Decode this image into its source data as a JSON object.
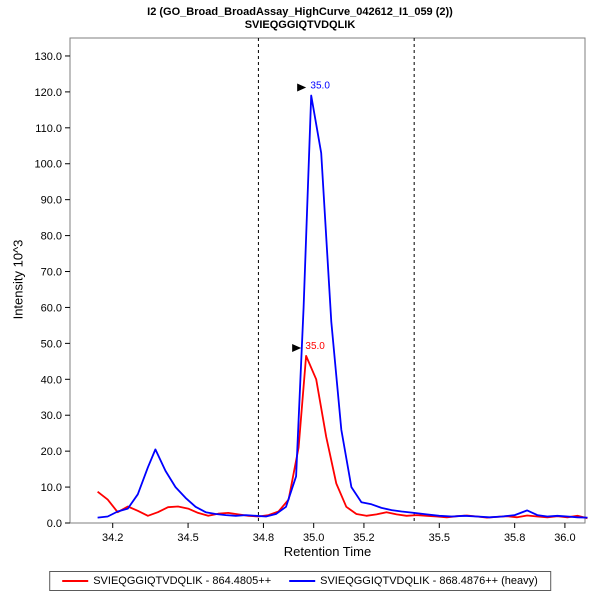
{
  "header": {
    "title_line1": "I2 (GO_Broad_BroadAssay_HighCurve_042612_I1_059 (2))",
    "title_line2": "SVIEQGGIQTVDQLIK"
  },
  "chart_data": {
    "type": "line",
    "title": "I2 (GO_Broad_BroadAssay_HighCurve_042612_I1_059 (2)) SVIEQGGIQTVDQLIK",
    "xlabel": "Retention Time",
    "ylabel": "Intensity 10^3",
    "xlim": [
      34.03,
      36.08
    ],
    "ylim": [
      0,
      135
    ],
    "xticks": [
      34.2,
      34.5,
      34.8,
      35.0,
      35.2,
      35.5,
      35.8,
      36.0
    ],
    "yticks": [
      0,
      10,
      20,
      30,
      40,
      50,
      60,
      70,
      80,
      90,
      100,
      110,
      120,
      130
    ],
    "grid": false,
    "legend_position": "bottom",
    "integration_boundaries": [
      34.78,
      35.4
    ],
    "series": [
      {
        "name": "SVIEQGGIQTVDQLIK - 864.4805++",
        "color": "#ff0000",
        "peak_annotation": {
          "x": 34.97,
          "y": 46.5,
          "label": "35.0"
        },
        "points": [
          [
            34.14,
            8.7
          ],
          [
            34.18,
            6.5
          ],
          [
            34.22,
            3.0
          ],
          [
            34.26,
            4.6
          ],
          [
            34.3,
            3.4
          ],
          [
            34.34,
            2.0
          ],
          [
            34.38,
            3.0
          ],
          [
            34.42,
            4.4
          ],
          [
            34.46,
            4.6
          ],
          [
            34.5,
            4.0
          ],
          [
            34.54,
            2.8
          ],
          [
            34.58,
            2.0
          ],
          [
            34.62,
            2.6
          ],
          [
            34.66,
            2.8
          ],
          [
            34.7,
            2.4
          ],
          [
            34.74,
            2.0
          ],
          [
            34.78,
            1.8
          ],
          [
            34.82,
            2.2
          ],
          [
            34.86,
            3.2
          ],
          [
            34.9,
            6.5
          ],
          [
            34.94,
            21.0
          ],
          [
            34.97,
            46.5
          ],
          [
            35.01,
            40.0
          ],
          [
            35.05,
            24.0
          ],
          [
            35.09,
            11.0
          ],
          [
            35.13,
            4.5
          ],
          [
            35.17,
            2.5
          ],
          [
            35.21,
            2.0
          ],
          [
            35.25,
            2.4
          ],
          [
            35.29,
            3.0
          ],
          [
            35.33,
            2.4
          ],
          [
            35.37,
            2.0
          ],
          [
            35.41,
            2.2
          ],
          [
            35.45,
            2.0
          ],
          [
            35.49,
            1.8
          ],
          [
            35.53,
            1.6
          ],
          [
            35.57,
            1.9
          ],
          [
            35.61,
            2.1
          ],
          [
            35.65,
            1.8
          ],
          [
            35.69,
            1.5
          ],
          [
            35.73,
            1.7
          ],
          [
            35.77,
            1.9
          ],
          [
            35.81,
            1.6
          ],
          [
            35.85,
            2.1
          ],
          [
            35.89,
            1.8
          ],
          [
            35.93,
            1.6
          ],
          [
            35.97,
            1.9
          ],
          [
            36.01,
            1.6
          ],
          [
            36.05,
            2.0
          ],
          [
            36.09,
            1.3
          ]
        ]
      },
      {
        "name": "SVIEQGGIQTVDQLIK - 868.4876++ (heavy)",
        "color": "#0000ff",
        "peak_annotation": {
          "x": 34.99,
          "y": 119.0,
          "label": "35.0"
        },
        "points": [
          [
            34.14,
            1.5
          ],
          [
            34.18,
            1.8
          ],
          [
            34.22,
            3.2
          ],
          [
            34.26,
            4.0
          ],
          [
            34.3,
            8.0
          ],
          [
            34.34,
            15.5
          ],
          [
            34.37,
            20.5
          ],
          [
            34.41,
            14.5
          ],
          [
            34.45,
            10.0
          ],
          [
            34.49,
            7.0
          ],
          [
            34.53,
            4.5
          ],
          [
            34.57,
            3.0
          ],
          [
            34.61,
            2.5
          ],
          [
            34.65,
            2.2
          ],
          [
            34.69,
            2.0
          ],
          [
            34.73,
            2.2
          ],
          [
            34.77,
            2.0
          ],
          [
            34.81,
            1.8
          ],
          [
            34.85,
            2.5
          ],
          [
            34.89,
            4.5
          ],
          [
            34.93,
            13.0
          ],
          [
            34.96,
            60.0
          ],
          [
            34.99,
            119.0
          ],
          [
            35.03,
            103.0
          ],
          [
            35.07,
            56.0
          ],
          [
            35.11,
            26.0
          ],
          [
            35.15,
            10.0
          ],
          [
            35.19,
            5.8
          ],
          [
            35.23,
            5.2
          ],
          [
            35.27,
            4.2
          ],
          [
            35.31,
            3.6
          ],
          [
            35.35,
            3.2
          ],
          [
            35.4,
            2.8
          ],
          [
            35.45,
            2.4
          ],
          [
            35.5,
            2.0
          ],
          [
            35.55,
            1.8
          ],
          [
            35.6,
            2.0
          ],
          [
            35.65,
            1.8
          ],
          [
            35.7,
            1.6
          ],
          [
            35.75,
            1.8
          ],
          [
            35.8,
            2.2
          ],
          [
            35.85,
            3.5
          ],
          [
            35.89,
            2.2
          ],
          [
            35.93,
            1.8
          ],
          [
            35.97,
            2.0
          ],
          [
            36.01,
            1.8
          ],
          [
            36.05,
            1.6
          ],
          [
            36.09,
            1.5
          ]
        ]
      }
    ]
  }
}
